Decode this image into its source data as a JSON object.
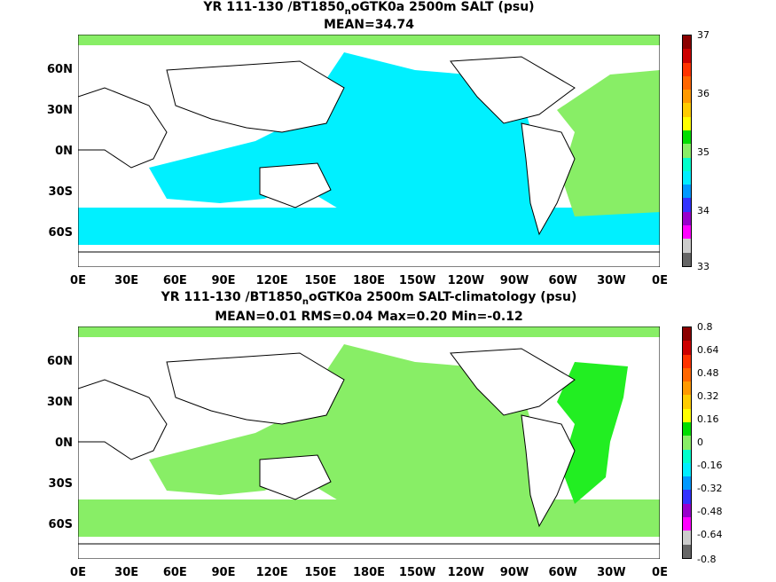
{
  "panels": [
    {
      "title_line1_a": "YR 111-130 /BT1850",
      "title_line1_sub": "n",
      "title_line1_b": "oGTK0a 2500m SALT (psu)",
      "title_line2": "MEAN=34.74",
      "colorbar_labels": [
        "37",
        "36",
        "35",
        "34",
        "33"
      ],
      "colorbar_colors": [
        "#8b0000",
        "#cc0000",
        "#ff3300",
        "#ff6600",
        "#ff9900",
        "#ffcc00",
        "#ffff00",
        "#00dd00",
        "#88ee66",
        "#00ffcc",
        "#00eeff",
        "#0099ff",
        "#3333ff",
        "#9900cc",
        "#ff00ff",
        "#cccccc",
        "#666666"
      ],
      "ocean_color": "#00f0ff",
      "atlantic_color": "#88ee66"
    },
    {
      "title_line1_a": "YR 111-130 /BT1850",
      "title_line1_sub": "n",
      "title_line1_b": "oGTK0a 2500m SALT-climatology (psu)",
      "title_line2": "MEAN=0.01   RMS=0.04   Max=0.20   Min=-0.12",
      "colorbar_labels": [
        "0.8",
        "0.64",
        "0.48",
        "0.32",
        "0.16",
        "0",
        "-0.16",
        "-0.32",
        "-0.48",
        "-0.64",
        "-0.8"
      ],
      "colorbar_colors": [
        "#8b0000",
        "#cc0000",
        "#ff3300",
        "#ff6600",
        "#ff9900",
        "#ffcc00",
        "#ffff00",
        "#00dd00",
        "#88ee66",
        "#00ffcc",
        "#00eeff",
        "#0099ff",
        "#3333ff",
        "#9900cc",
        "#ff00ff",
        "#cccccc",
        "#666666"
      ],
      "ocean_color": "#88ee66",
      "atlantic_color": "#22ee22"
    }
  ],
  "lat_labels": [
    "60N",
    "30N",
    "0N",
    "30S",
    "60S"
  ],
  "lon_labels": [
    "0E",
    "30E",
    "60E",
    "90E",
    "120E",
    "150E",
    "180E",
    "150W",
    "120W",
    "90W",
    "60W",
    "30W",
    "0E"
  ]
}
